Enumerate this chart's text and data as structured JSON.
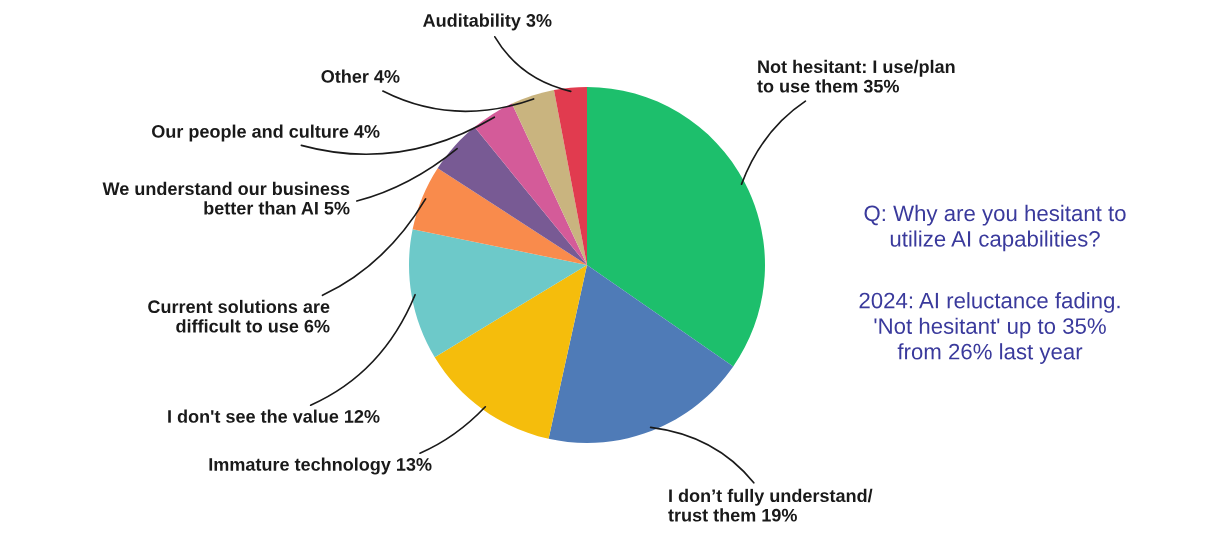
{
  "chart_data": {
    "type": "pie",
    "categories": [
      "Not hesitant: I use/plan\nto use them",
      "I don’t fully understand/\ntrust them",
      "Immature technology",
      "I don't see the value",
      "Current solutions are\ndifficult to use",
      "We understand our business\nbetter than AI",
      "Our people and culture",
      "Other",
      "Auditability"
    ],
    "values": [
      35,
      19,
      13,
      12,
      6,
      5,
      4,
      4,
      3
    ],
    "value_labels": [
      "35%",
      "19%",
      "13%",
      "12%",
      "6%",
      "5%",
      "4%",
      "4%",
      "3%"
    ],
    "colors": [
      "#1dbf6c",
      "#4f7bb7",
      "#f5bd0c",
      "#6dc9c9",
      "#f98b4c",
      "#785a94",
      "#d45b99",
      "#c9b47f",
      "#e13b4f"
    ],
    "annotations": [
      "Q: Why are you hesitant to\nutilize AI capabilities?",
      "2024: AI reluctance fading.\n'Not hesitant' up to 35%\nfrom 26% last year"
    ]
  }
}
